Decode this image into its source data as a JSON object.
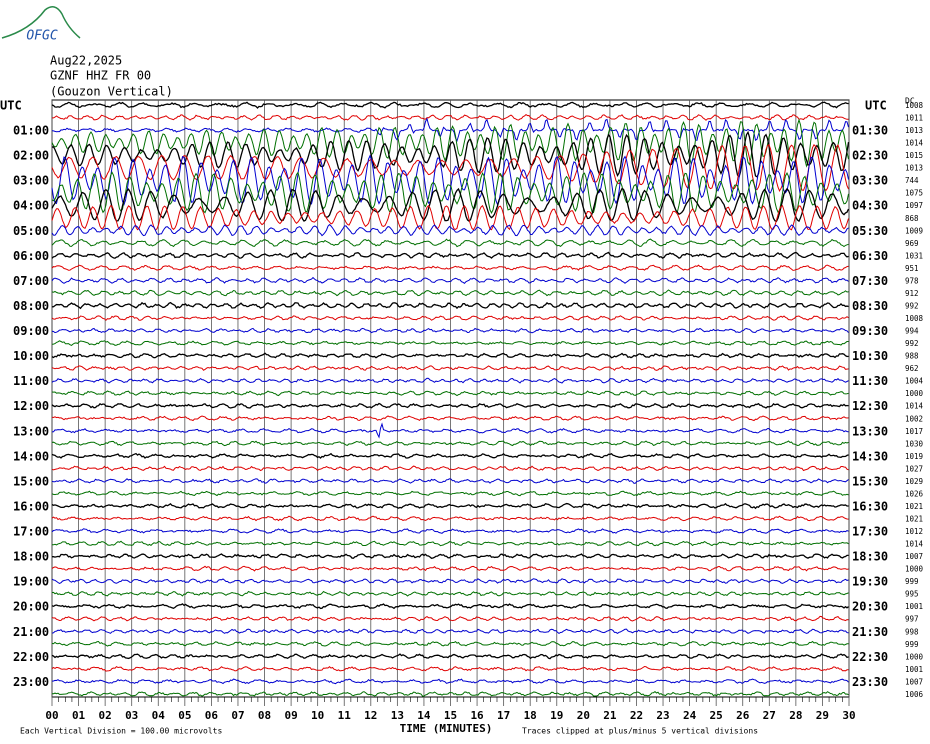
{
  "logo": "OFGC",
  "header": {
    "date": "Aug22,2025",
    "station": "GZNF HHZ FR 00",
    "location": "(Gouzon Vertical)"
  },
  "left_labels": {
    "title": "UTC",
    "times": [
      "01:00",
      "02:00",
      "03:00",
      "04:00",
      "05:00",
      "06:00",
      "07:00",
      "08:00",
      "09:00",
      "10:00",
      "11:00",
      "12:00",
      "13:00",
      "14:00",
      "15:00",
      "16:00",
      "17:00",
      "18:00",
      "19:00",
      "20:00",
      "21:00",
      "22:00",
      "23:00"
    ]
  },
  "right_labels": {
    "title": "UTC",
    "times": [
      "01:30",
      "02:30",
      "03:30",
      "04:30",
      "05:30",
      "06:30",
      "07:30",
      "08:30",
      "09:30",
      "10:30",
      "11:30",
      "12:30",
      "13:30",
      "14:30",
      "15:30",
      "16:30",
      "17:30",
      "18:30",
      "19:30",
      "20:30",
      "21:30",
      "22:30",
      "23:30"
    ]
  },
  "dc": {
    "title": "DC",
    "values": [
      "1008",
      "1011",
      "1013",
      "1014",
      "1015",
      "1013",
      "744",
      "1075",
      "1097",
      "868",
      "1009",
      "969",
      "1031",
      "951",
      "978",
      "912",
      "992",
      "1008",
      "994",
      "992",
      "988",
      "962",
      "1004",
      "1000",
      "1014",
      "1002",
      "1017",
      "1030",
      "1019",
      "1027",
      "1029",
      "1026",
      "1021",
      "1021",
      "1012",
      "1014",
      "1007",
      "1000",
      "999",
      "995",
      "1001",
      "997",
      "998",
      "999",
      "1000",
      "1001",
      "1007",
      "1006"
    ]
  },
  "x_axis": {
    "ticks": [
      "00",
      "01",
      "02",
      "03",
      "04",
      "05",
      "06",
      "07",
      "08",
      "09",
      "10",
      "11",
      "12",
      "13",
      "14",
      "15",
      "16",
      "17",
      "18",
      "19",
      "20",
      "21",
      "22",
      "23",
      "24",
      "25",
      "26",
      "27",
      "28",
      "29",
      "30"
    ],
    "label": "TIME (MINUTES)"
  },
  "footer": {
    "scale": "Each Vertical Division =  100.00 microvolts",
    "clip": "Traces clipped at plus/minus 5 vertical divisions"
  }
}
